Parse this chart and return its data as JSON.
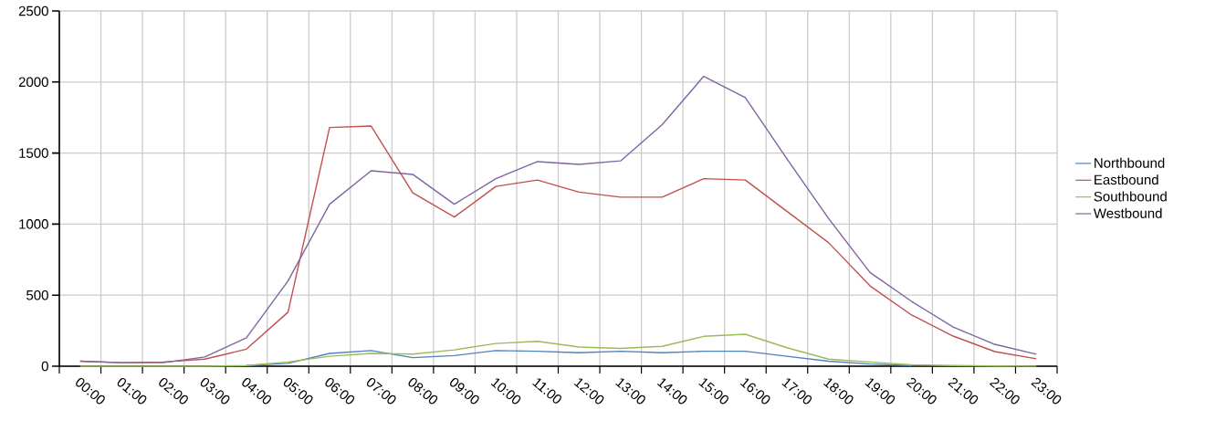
{
  "chart_data": {
    "type": "line",
    "categories": [
      "00:00",
      "01:00",
      "02:00",
      "03:00",
      "04:00",
      "05:00",
      "06:00",
      "07:00",
      "08:00",
      "09:00",
      "10:00",
      "11:00",
      "12:00",
      "13:00",
      "14:00",
      "15:00",
      "16:00",
      "17:00",
      "18:00",
      "19:00",
      "20:00",
      "21:00",
      "22:00",
      "23:00"
    ],
    "series": [
      {
        "name": "Northbound",
        "color": "#4f81bd",
        "values": [
          null,
          null,
          null,
          null,
          5,
          20,
          90,
          110,
          60,
          75,
          110,
          105,
          95,
          105,
          95,
          105,
          105,
          70,
          35,
          15,
          5,
          null,
          null,
          null
        ]
      },
      {
        "name": "Eastbound",
        "color": "#c0504d",
        "values": [
          35,
          25,
          30,
          50,
          120,
          380,
          1680,
          1690,
          1220,
          1050,
          1265,
          1310,
          1225,
          1190,
          1190,
          1320,
          1310,
          1090,
          870,
          565,
          360,
          212,
          103,
          52
        ]
      },
      {
        "name": "Southbound",
        "color": "#9bbb59",
        "values": [
          0,
          0,
          0,
          0,
          5,
          30,
          70,
          90,
          85,
          115,
          160,
          175,
          135,
          125,
          140,
          210,
          225,
          130,
          50,
          30,
          10,
          5,
          2,
          1
        ]
      },
      {
        "name": "Westbound",
        "color": "#8064a2",
        "values": [
          35,
          25,
          25,
          65,
          200,
          600,
          1140,
          1375,
          1350,
          1140,
          1320,
          1440,
          1420,
          1445,
          1700,
          2040,
          1890,
          1460,
          1040,
          660,
          456,
          276,
          154,
          84
        ]
      }
    ],
    "ylim": [
      0,
      2500
    ],
    "yticks": [
      0,
      500,
      1000,
      1500,
      2000,
      2500
    ],
    "grid": true,
    "legend": "right",
    "marker": "none",
    "line_style": "solid"
  }
}
